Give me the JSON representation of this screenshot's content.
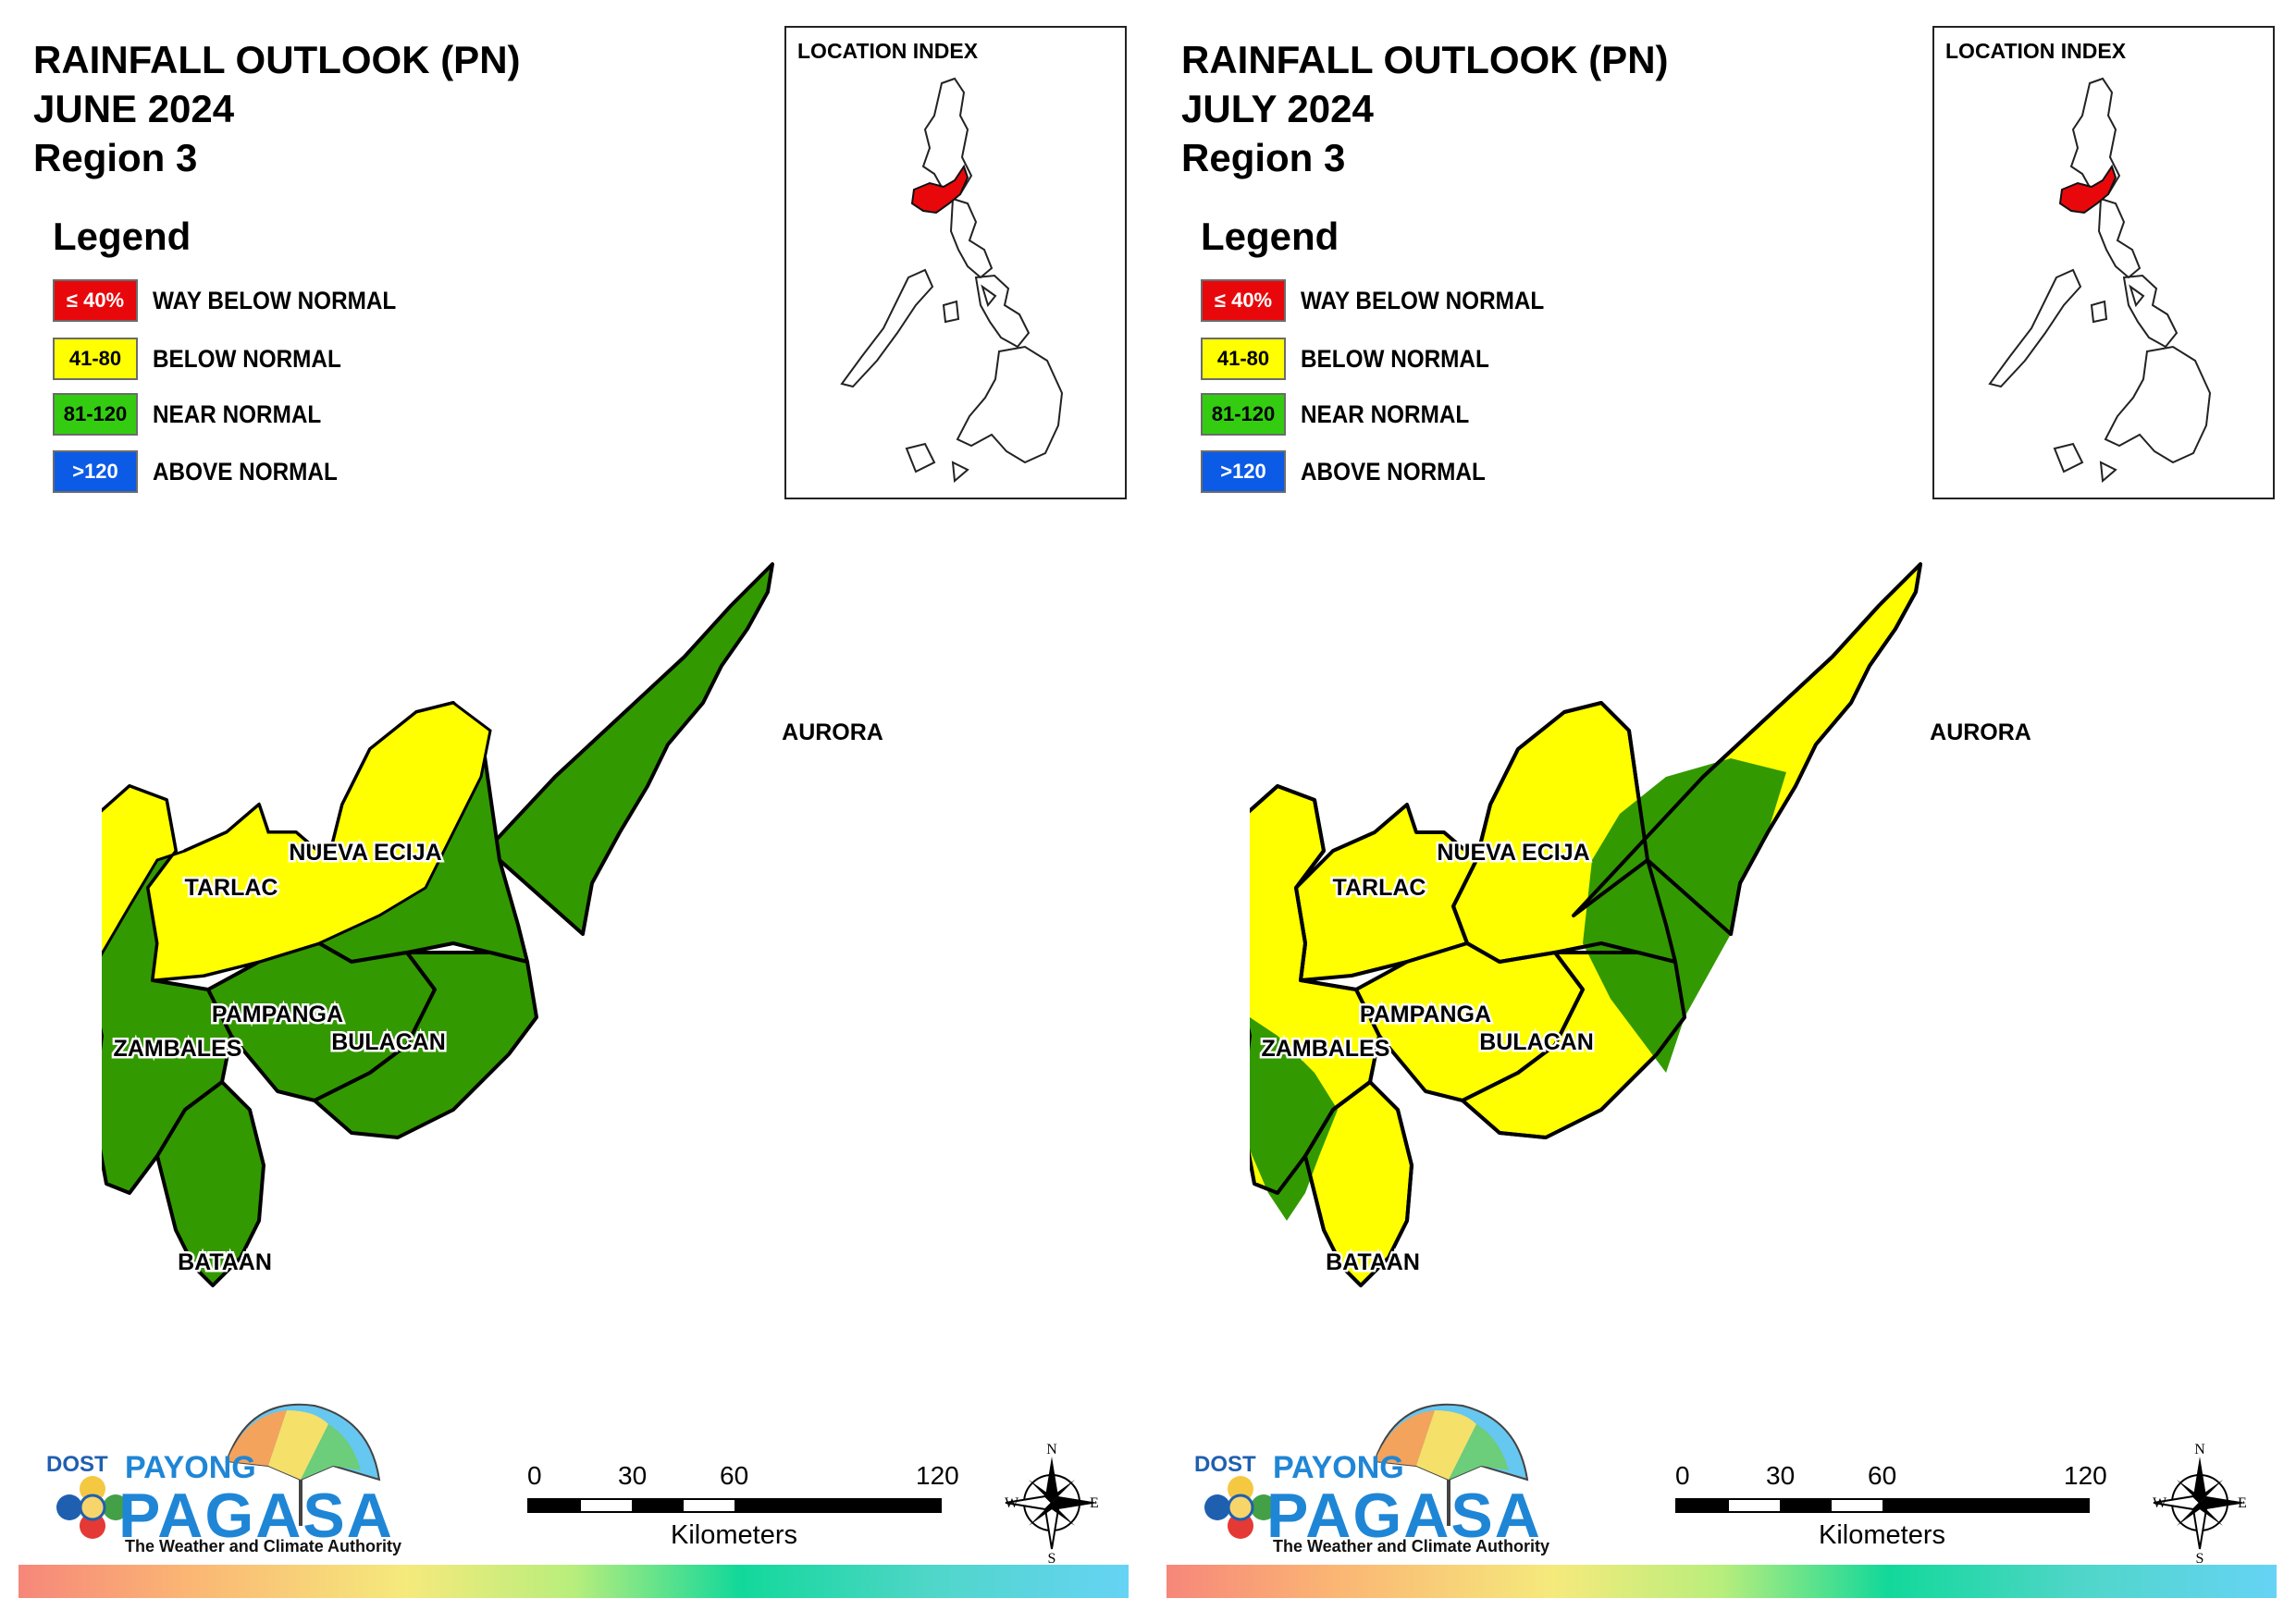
{
  "panels": [
    {
      "id": "june",
      "title_line1": "RAINFALL OUTLOOK (PN)",
      "title_line2": "JUNE 2024",
      "title_line3": "Region 3",
      "provinces": {
        "aurora": "near-normal",
        "nueva_ecija": "mixed-near-normal-mostly",
        "tarlac": "below-normal",
        "zambales": "mixed-below-north-near-south",
        "pampanga": "near-normal",
        "bulacan": "near-normal",
        "bataan": "near-normal"
      }
    },
    {
      "id": "july",
      "title_line1": "RAINFALL OUTLOOK (PN)",
      "title_line2": "JULY 2024",
      "title_line3": "Region 3",
      "provinces": {
        "aurora": "mixed-below-north-near-south",
        "nueva_ecija": "mixed-below-west-near-east",
        "tarlac": "below-normal",
        "zambales": "mixed-below-north-near-south",
        "pampanga": "below-normal",
        "bulacan": "mixed-below-west-near-east",
        "bataan": "mixed-near-west-below-east"
      }
    }
  ],
  "legend": {
    "title": "Legend",
    "items": [
      {
        "range": "≤ 40%",
        "label": "WAY BELOW NORMAL",
        "color": "#e8080b",
        "text_color": "#ffffff"
      },
      {
        "range": "41-80",
        "label": "BELOW NORMAL",
        "color": "#ffff00",
        "text_color": "#000000"
      },
      {
        "range": "81-120",
        "label": "NEAR NORMAL",
        "color": "#33cc11",
        "text_color": "#000000"
      },
      {
        "range": ">120",
        "label": "ABOVE NORMAL",
        "color": "#0b5be6",
        "text_color": "#ffffff"
      }
    ]
  },
  "location_index": {
    "title": "LOCATION INDEX",
    "highlight_color": "#e8080b"
  },
  "map_colors": {
    "near_normal": "#339900",
    "below_normal": "#ffff00",
    "border": "#000000"
  },
  "province_labels": {
    "aurora": "AURORA",
    "nueva_ecija": "NUEVA ECIJA",
    "tarlac": "TARLAC",
    "pampanga": "PAMPANGA",
    "zambales": "ZAMBALES",
    "bulacan": "BULACAN",
    "bataan": "BATAAN"
  },
  "scale_bar": {
    "ticks": [
      "0",
      "30",
      "60",
      "120"
    ],
    "unit": "Kilometers"
  },
  "compass": {
    "n": "N",
    "s": "S",
    "e": "E",
    "w": "W"
  },
  "logo": {
    "dost": "DOST",
    "payong": "PAYONG",
    "pagasa": "PAGASA",
    "tagline": "The Weather and Climate Authority"
  }
}
